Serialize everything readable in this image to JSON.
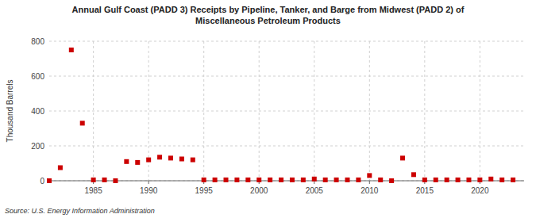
{
  "chart_data": {
    "type": "scatter",
    "title": "Annual Gulf Coast (PADD 3) Receipts by Pipeline, Tanker, and Barge from Midwest (PADD 2) of\nMiscellaneous Petroleum Products",
    "ylabel": "Thousand Barrels",
    "source": "Source: U.S. Energy Information Administration",
    "x": [
      1981,
      1982,
      1983,
      1984,
      1985,
      1986,
      1987,
      1988,
      1989,
      1990,
      1991,
      1992,
      1993,
      1994,
      1995,
      1996,
      1997,
      1998,
      1999,
      2000,
      2001,
      2002,
      2003,
      2004,
      2005,
      2006,
      2007,
      2008,
      2009,
      2010,
      2011,
      2012,
      2013,
      2014,
      2015,
      2016,
      2017,
      2018,
      2019,
      2020,
      2021,
      2022,
      2023
    ],
    "values": [
      0,
      75,
      750,
      330,
      5,
      5,
      0,
      110,
      105,
      120,
      135,
      130,
      125,
      120,
      5,
      5,
      5,
      5,
      5,
      5,
      5,
      5,
      5,
      5,
      10,
      5,
      5,
      5,
      5,
      30,
      5,
      0,
      130,
      35,
      5,
      5,
      5,
      5,
      5,
      5,
      10,
      5,
      5
    ],
    "color": "#cc0000",
    "marker": "square",
    "xlim": [
      1981,
      2024
    ],
    "ylim": [
      0,
      800
    ],
    "xticks": [
      1985,
      1990,
      1995,
      2000,
      2005,
      2010,
      2015,
      2020
    ],
    "yticks": [
      0,
      200,
      400,
      600,
      800
    ],
    "grid": true
  }
}
